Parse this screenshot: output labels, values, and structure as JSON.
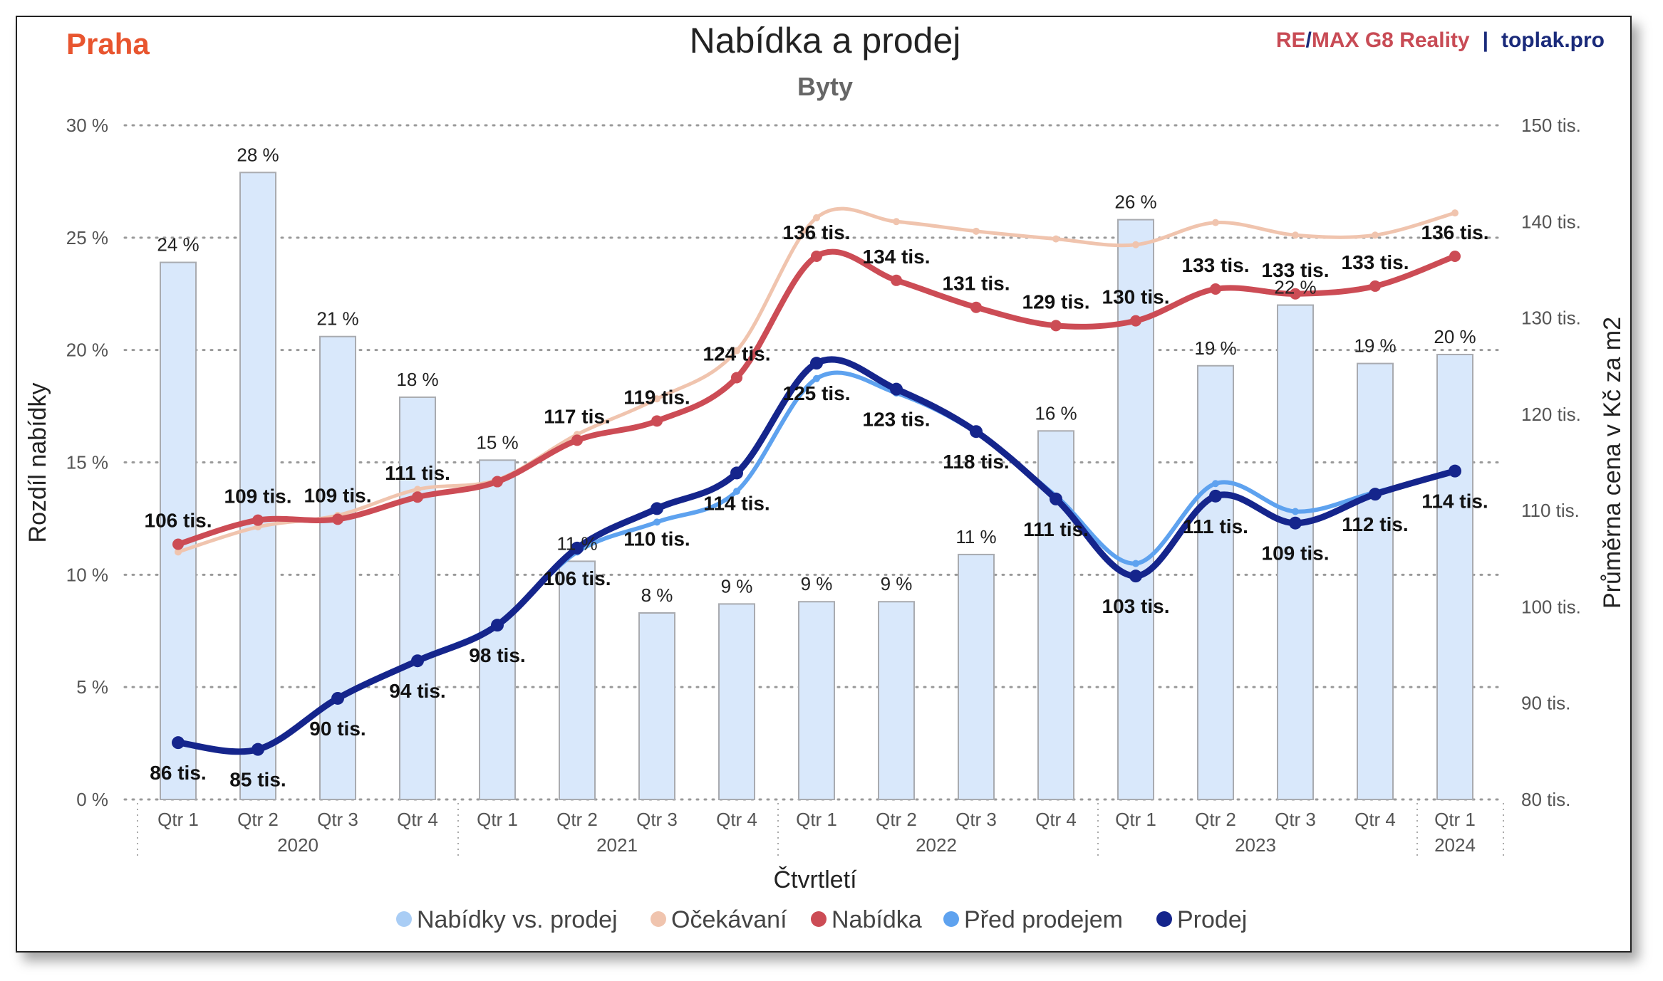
{
  "header": {
    "city": "Praha",
    "title": "Nabídka a prodej",
    "subtitle": "Byty",
    "brand_re": "RE",
    "brand_slash": "/",
    "brand_max": "MAX G8 Reality",
    "brand_sep": "|",
    "brand_site": "toplak.pro",
    "city_color": "#e8552f",
    "brand_color": "#c84b55",
    "site_color": "#1a2a7a"
  },
  "chart_data": {
    "type": "bar",
    "title": "Nabídka a prodej",
    "subtitle": "Byty",
    "xlabel": "Čtvrtletí",
    "ylabel": "Rozdíl nabídky",
    "y2label": "Průměrna cena v Kč za m2",
    "ylim": [
      0,
      30
    ],
    "y2lim": [
      80,
      150
    ],
    "yticks": [
      "0 %",
      "5 %",
      "10 %",
      "15 %",
      "20 %",
      "25 %",
      "30 %"
    ],
    "y2ticks": [
      "80 tis.",
      "90 tis.",
      "100 tis.",
      "110 tis.",
      "120 tis.",
      "130 tis.",
      "140 tis.",
      "150 tis."
    ],
    "grid": true,
    "legend_position": "bottom",
    "categories": [
      "Qtr 1",
      "Qtr 2",
      "Qtr 3",
      "Qtr 4",
      "Qtr 1",
      "Qtr 2",
      "Qtr 3",
      "Qtr 4",
      "Qtr 1",
      "Qtr 2",
      "Qtr 3",
      "Qtr 4",
      "Qtr 1",
      "Qtr 2",
      "Qtr 3",
      "Qtr 4",
      "Qtr 1"
    ],
    "years": [
      {
        "label": "2020",
        "start": 0,
        "end": 3
      },
      {
        "label": "2021",
        "start": 4,
        "end": 7
      },
      {
        "label": "2022",
        "start": 8,
        "end": 11
      },
      {
        "label": "2023",
        "start": 12,
        "end": 15
      },
      {
        "label": "2024",
        "start": 16,
        "end": 16
      }
    ],
    "series": [
      {
        "name": "Nabídky vs. prodej",
        "kind": "bar",
        "axis": "left",
        "color": "#a9cdf5",
        "values": [
          23.9,
          27.9,
          20.6,
          17.9,
          15.1,
          10.6,
          8.3,
          8.7,
          8.8,
          8.8,
          10.9,
          16.4,
          25.8,
          19.3,
          22.0,
          19.4,
          19.8
        ],
        "labels": [
          "24 %",
          "28 %",
          "21 %",
          "18 %",
          "15 %",
          "11 %",
          "8 %",
          "9 %",
          "9 %",
          "9 %",
          "11 %",
          "16 %",
          "26 %",
          "19 %",
          "22 %",
          "19 %",
          "20 %"
        ]
      },
      {
        "name": "Očekávaní",
        "kind": "line",
        "axis": "right",
        "color": "#f0c4ae",
        "values": [
          105.7,
          108.3,
          109.5,
          112.2,
          113.2,
          117.9,
          121.6,
          126.6,
          140.4,
          140.0,
          139.0,
          138.2,
          137.6,
          139.9,
          138.6,
          138.6,
          140.9
        ],
        "labels": []
      },
      {
        "name": "Nabídka",
        "kind": "line",
        "axis": "right",
        "color": "#cc4c55",
        "values": [
          106.5,
          109.0,
          109.1,
          111.4,
          113.0,
          117.3,
          119.3,
          123.8,
          136.4,
          133.9,
          131.1,
          129.2,
          129.7,
          133.0,
          132.5,
          133.3,
          136.4
        ],
        "labels": [
          "106 tis.",
          "109 tis.",
          "109 tis.",
          "111 tis.",
          "",
          "117 tis.",
          "119 tis.",
          "124 tis.",
          "136 tis.",
          "134 tis.",
          "131 tis.",
          "129 tis.",
          "130 tis.",
          "133 tis.",
          "133 tis.",
          "133 tis.",
          "136 tis."
        ]
      },
      {
        "name": "Před prodejem",
        "kind": "line",
        "axis": "right",
        "color": "#5ea2ef",
        "values": [
          85.8,
          85.2,
          90.5,
          94.5,
          98.2,
          105.7,
          108.8,
          112.0,
          123.7,
          122.2,
          118.1,
          111.5,
          104.5,
          112.8,
          109.9,
          111.9,
          114.0
        ],
        "labels": []
      },
      {
        "name": "Prodej",
        "kind": "line",
        "axis": "right",
        "color": "#15258c",
        "values": [
          85.9,
          85.2,
          90.5,
          94.4,
          98.1,
          106.1,
          110.2,
          113.9,
          125.3,
          122.6,
          118.2,
          111.2,
          103.2,
          111.5,
          108.7,
          111.7,
          114.1
        ],
        "labels": [
          "86 tis.",
          "85 tis.",
          "90 tis.",
          "94 tis.",
          "98 tis.",
          "106 tis.",
          "110 tis.",
          "114 tis.",
          "125 tis.",
          "123 tis.",
          "118 tis.",
          "111 tis.",
          "103 tis.",
          "111 tis.",
          "109 tis.",
          "112 tis.",
          "114 tis."
        ]
      }
    ]
  }
}
